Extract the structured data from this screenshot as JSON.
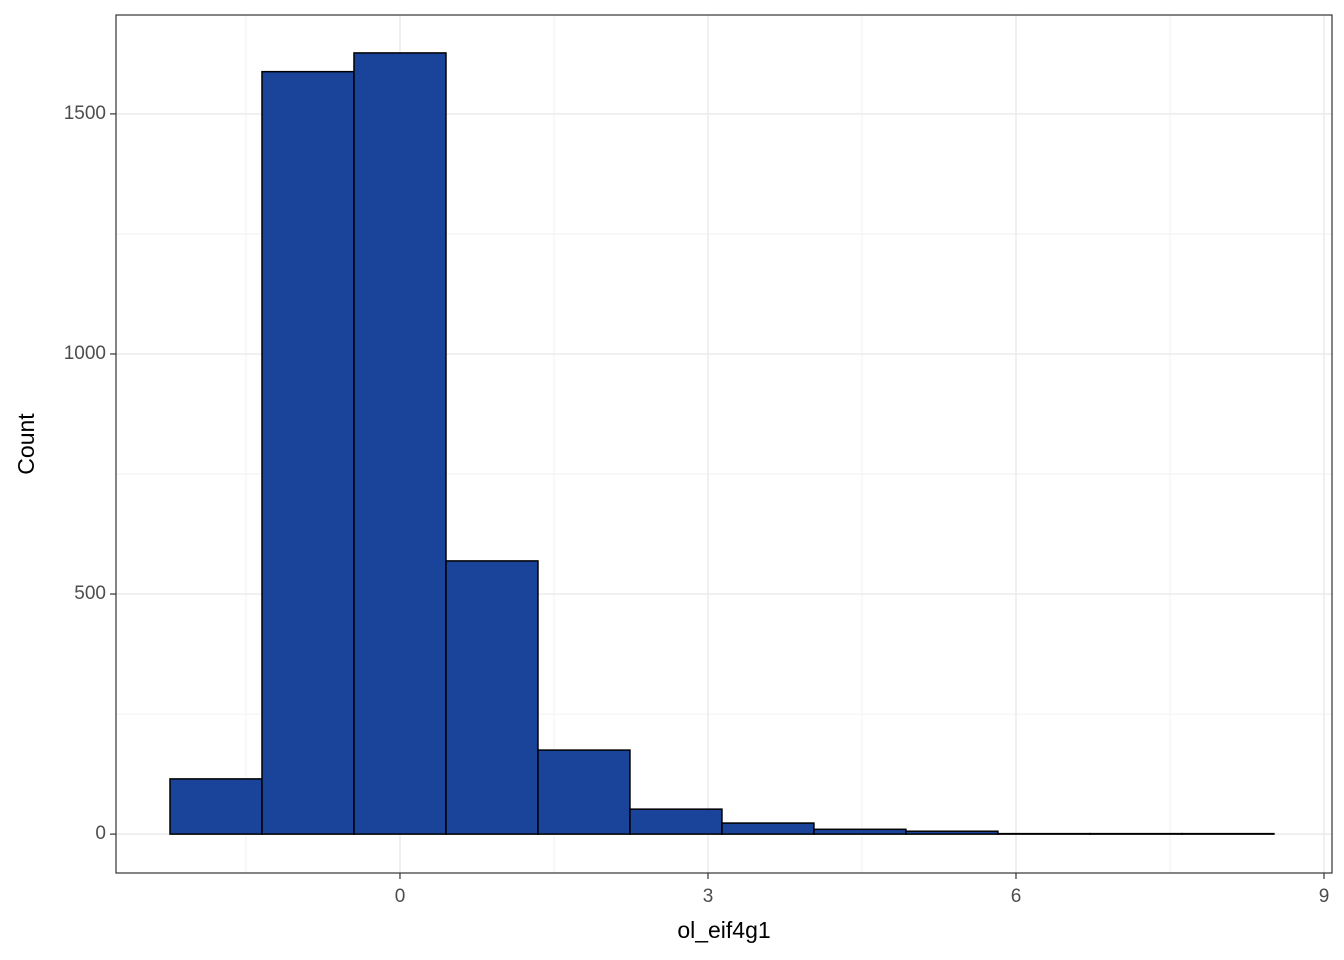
{
  "chart_data": {
    "type": "histogram",
    "x_label": "ol_eif4g1",
    "y_label": "Count",
    "bins": [
      -2.24,
      -1.344,
      -0.448,
      0.448,
      1.344,
      2.24,
      3.136,
      4.032,
      4.928,
      5.824,
      6.72,
      7.616,
      8.512
    ],
    "counts": [
      115,
      1588,
      1627,
      569,
      175,
      52,
      23,
      10,
      6,
      1,
      1,
      1
    ],
    "color": "#1a439a",
    "edge_color": "#000000",
    "xlim": [
      -2.766,
      9.078
    ],
    "xticks": [
      0,
      3,
      6,
      9
    ],
    "ylim": [
      -81,
      1706
    ],
    "yticks": [
      0,
      500,
      1000,
      1500
    ],
    "grid": true
  }
}
